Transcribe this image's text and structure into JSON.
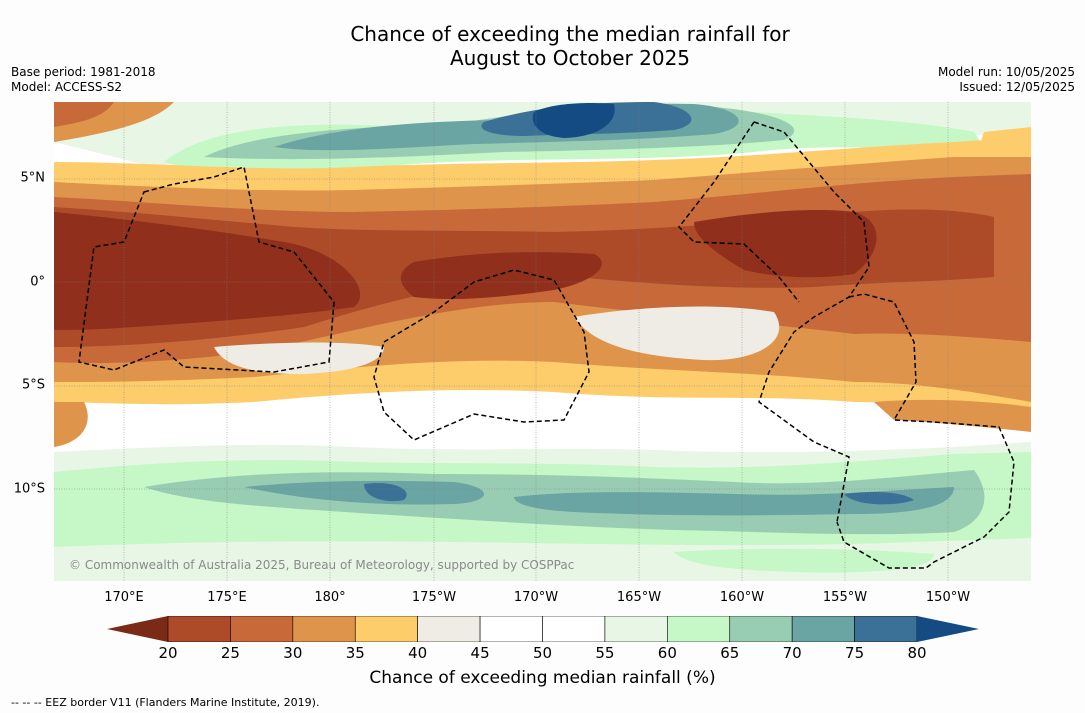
{
  "title": {
    "line1": "Chance of exceeding the median rainfall for",
    "line2": "August to October 2025"
  },
  "meta_left": {
    "base_period": "Base period: 1981-2018",
    "model": "Model: ACCESS-S2"
  },
  "meta_right": {
    "model_run": "Model run: 10/05/2025",
    "issued": "Issued: 12/05/2025"
  },
  "map": {
    "copyright": "© Commonwealth of Australia 2025, Bureau of Meteorology, supported by COSPPac",
    "lon_labels": [
      "170°E",
      "175°E",
      "180°",
      "175°W",
      "170°W",
      "165°W",
      "160°W",
      "155°W",
      "150°W"
    ],
    "lat_labels": [
      "5°N",
      "0°",
      "5°S",
      "10°S"
    ],
    "colors": {
      "20": "#8f2f1c",
      "25": "#ad4a28",
      "30": "#c8693a",
      "35": "#de944b",
      "40": "#fdcd6c",
      "45": "#efebe5",
      "50": "#ffffff",
      "55": "#ffffff",
      "60": "#e8f6e6",
      "65": "#c6f7c6",
      "70": "#98cdb4",
      "75": "#6aa4a3",
      "80": "#3b7196",
      "above": "#134b82"
    }
  },
  "colorbar": {
    "ticks": [
      "20",
      "25",
      "30",
      "35",
      "40",
      "45",
      "50",
      "55",
      "60",
      "65",
      "70",
      "75",
      "80"
    ],
    "below_color": "#7a2b16",
    "colors": [
      "#ad4a28",
      "#c8693a",
      "#de944b",
      "#fdcd6c",
      "#efebe5",
      "#ffffff",
      "#ffffff",
      "#e8f6e6",
      "#c6f7c6",
      "#98cdb4",
      "#6aa4a3",
      "#3b7196"
    ],
    "above_color": "#134b82",
    "label": "Chance of exceeding median rainfall (%)"
  },
  "footnote": "-- -- -- EEZ border V11 (Flanders Marine Institute, 2019)."
}
